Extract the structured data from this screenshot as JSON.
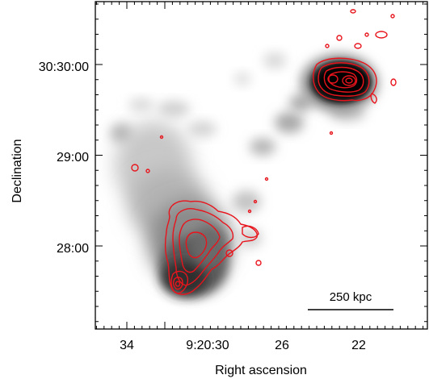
{
  "figure": {
    "xlabel": "Right ascension",
    "ylabel": "Declination",
    "x_ticks": [
      "34",
      "9:20:30",
      "26",
      "22"
    ],
    "y_ticks": [
      "30:30:00",
      "29:00",
      "28:00"
    ],
    "scalebar_label": "250 kpc",
    "contour_color": "#e8141c",
    "greyscale": "black-on-white"
  }
}
